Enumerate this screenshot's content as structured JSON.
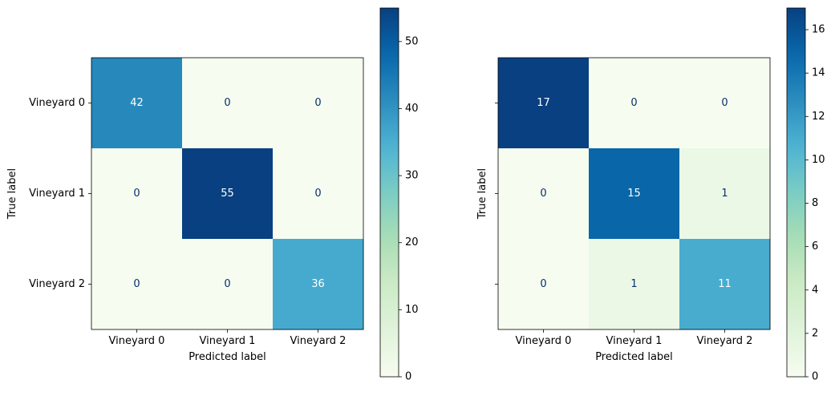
{
  "chart_data": [
    {
      "type": "heatmap",
      "colormap": "GnBu",
      "xlabel": "Predicted label",
      "ylabel": "True label",
      "x_categories": [
        "Vineyard 0",
        "Vineyard 1",
        "Vineyard 2"
      ],
      "y_categories": [
        "Vineyard 0",
        "Vineyard 1",
        "Vineyard 2"
      ],
      "matrix": [
        [
          42,
          0,
          0
        ],
        [
          0,
          55,
          0
        ],
        [
          0,
          0,
          36
        ]
      ],
      "colorbar": {
        "range": [
          0,
          55
        ],
        "ticks": [
          0,
          10,
          20,
          30,
          40,
          50
        ]
      }
    },
    {
      "type": "heatmap",
      "colormap": "GnBu",
      "xlabel": "Predicted label",
      "ylabel": "True label",
      "x_categories": [
        "Vineyard 0",
        "Vineyard 1",
        "Vineyard 2"
      ],
      "y_categories": [
        "Vineyard 0",
        "Vineyard 1",
        "Vineyard 2"
      ],
      "y_ticklabels_visible": false,
      "matrix": [
        [
          17,
          0,
          0
        ],
        [
          0,
          15,
          1
        ],
        [
          0,
          1,
          11
        ]
      ],
      "colorbar": {
        "range": [
          0,
          17
        ],
        "ticks": [
          0,
          2,
          4,
          6,
          8,
          10,
          12,
          14,
          16
        ]
      }
    }
  ]
}
